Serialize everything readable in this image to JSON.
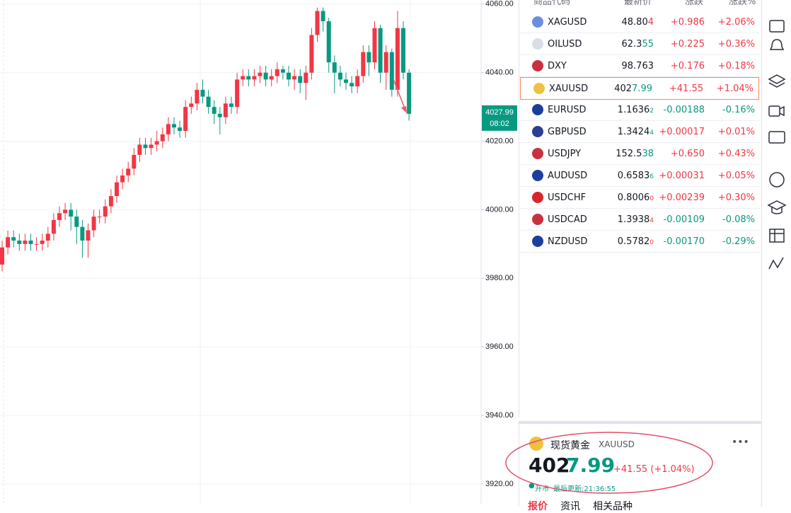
{
  "chart_data": {
    "type": "candlestick",
    "up_color": "#f23645",
    "down_color": "#089981",
    "ylim": [
      3914.2,
      4061.2
    ],
    "yticks": [
      {
        "value": 4060,
        "label": "4060.00"
      },
      {
        "value": 4040,
        "label": "4040.00"
      },
      {
        "value": 4020,
        "label": "4020.00"
      },
      {
        "value": 4000,
        "label": "4000.00"
      },
      {
        "value": 3980,
        "label": "3980.00"
      },
      {
        "value": 3960,
        "label": "3960.00"
      },
      {
        "value": 3940,
        "label": "3940.00"
      },
      {
        "value": 3920,
        "label": "3920.00"
      }
    ],
    "grid": true,
    "open": [
      3984,
      3989,
      3992,
      3991,
      3990,
      3991,
      3990,
      3990,
      3991,
      3993,
      3997,
      3999,
      4000,
      3998,
      3995,
      3991,
      3994,
      3998,
      3998,
      4001,
      4004,
      4008,
      4010,
      4012,
      4016,
      4019,
      4018,
      4019,
      4020,
      4022,
      4025,
      4024,
      4023,
      4030,
      4031,
      4035,
      4033,
      4030,
      4028,
      4027,
      4031,
      4030,
      4038,
      4039,
      4038,
      4039,
      4040,
      4038,
      4039,
      4041,
      4040,
      4038,
      4039,
      4037,
      4040,
      4051,
      4058,
      4055,
      4043,
      4040,
      4038,
      4037,
      4036,
      4039,
      4046,
      4043,
      4053,
      4040,
      4046,
      4035,
      4053,
      4040
    ],
    "close": [
      3989,
      3992,
      3991,
      3990,
      3991,
      3990,
      3990,
      3991,
      3993,
      3997,
      3999,
      4000,
      3998,
      3995,
      3991,
      3994,
      3998,
      3998,
      4001,
      4004,
      4008,
      4010,
      4012,
      4016,
      4019,
      4018,
      4019,
      4020,
      4022,
      4025,
      4024,
      4023,
      4030,
      4031,
      4035,
      4033,
      4030,
      4028,
      4027,
      4031,
      4030,
      4038,
      4039,
      4038,
      4039,
      4040,
      4038,
      4039,
      4041,
      4040,
      4038,
      4039,
      4037,
      4040,
      4051,
      4058,
      4055,
      4043,
      4040,
      4038,
      4037,
      4036,
      4039,
      4046,
      4043,
      4053,
      4040,
      4046,
      4035,
      4053,
      4040,
      4027.99
    ],
    "high": [
      3991,
      3994,
      3994,
      3993,
      3993,
      3993,
      3992,
      3993,
      3995,
      3999,
      4001,
      4002,
      4002,
      4000,
      3997,
      3996,
      4000,
      4000,
      4003,
      4006,
      4010,
      4012,
      4014,
      4018,
      4021,
      4021,
      4021,
      4023,
      4024,
      4027,
      4027,
      4026,
      4032,
      4033,
      4037,
      4038,
      4035,
      4032,
      4030,
      4033,
      4033,
      4040,
      4041,
      4041,
      4041,
      4042,
      4042,
      4041,
      4043,
      4042,
      4042,
      4041,
      4041,
      4042,
      4053,
      4059,
      4059,
      4056,
      4045,
      4042,
      4040,
      4039,
      4041,
      4048,
      4048,
      4055,
      4054,
      4048,
      4047,
      4058,
      4055,
      4041
    ],
    "low": [
      3982,
      3987,
      3989,
      3988,
      3988,
      3988,
      3988,
      3988,
      3989,
      3991,
      3995,
      3997,
      3994,
      3990,
      3986,
      3986,
      3992,
      3996,
      3996,
      3999,
      4002,
      4006,
      4008,
      4010,
      4014,
      4016,
      4016,
      4017,
      4018,
      4020,
      4022,
      4021,
      4021,
      4028,
      4029,
      4031,
      4028,
      4025,
      4022,
      4025,
      4028,
      4028,
      4036,
      4036,
      4036,
      4037,
      4036,
      4036,
      4037,
      4038,
      4036,
      4035,
      4034,
      4032,
      4038,
      4049,
      4052,
      4040,
      4034,
      4036,
      4035,
      4034,
      4034,
      4037,
      4039,
      4041,
      4037,
      4035,
      4033,
      4033,
      4038,
      4026
    ],
    "last_price": 4027.99,
    "last_time": "08:02"
  },
  "watchlist": {
    "headers": [
      "商品代码",
      "最新价",
      "涨跌",
      "涨跌%"
    ],
    "rows": [
      {
        "symbol": "XAGUSD",
        "price_main": "48.80",
        "price_tail": "4",
        "tail_color": "#f23645",
        "tail_small": false,
        "change": "+0.986",
        "change_pct": "+2.06%",
        "change_color": "#f23645",
        "icon_color": "#6b8fe0"
      },
      {
        "symbol": "OILUSD",
        "price_main": "62.3",
        "price_tail": "55",
        "tail_color": "#089981",
        "tail_small": false,
        "change": "+0.225",
        "change_pct": "+0.36%",
        "change_color": "#f23645",
        "icon_color": "#d8dde6"
      },
      {
        "symbol": "DXY",
        "price_main": "98.763",
        "change": "+0.176",
        "change_pct": "+0.18%",
        "change_color": "#f23645",
        "icon_color": "#c8313e"
      },
      {
        "symbol": "XAUUSD",
        "price_main": "402",
        "price_tail": "7.99",
        "tail_color": "#089981",
        "tail_small": false,
        "change": "+41.55",
        "change_pct": "+1.04%",
        "change_color": "#f23645",
        "icon_color": "#f0c040",
        "selected": true
      },
      {
        "symbol": "EURUSD",
        "price_main": "1.1636",
        "price_tail": "2",
        "tail_color": "#089981",
        "tail_small": true,
        "change": "-0.00188",
        "change_pct": "-0.16%",
        "change_color": "#089981",
        "icon_color": "#1d3f99"
      },
      {
        "symbol": "GBPUSD",
        "price_main": "1.3424",
        "price_tail": "4",
        "tail_color": "#089981",
        "tail_small": true,
        "change": "+0.00017",
        "change_pct": "+0.01%",
        "change_color": "#f23645",
        "icon_color": "#2a3f8f"
      },
      {
        "symbol": "USDJPY",
        "price_main": "152.5",
        "price_tail": "38",
        "tail_color": "#089981",
        "tail_small": false,
        "change": "+0.650",
        "change_pct": "+0.43%",
        "change_color": "#f23645",
        "icon_color": "#c8313e"
      },
      {
        "symbol": "AUDUSD",
        "price_main": "0.6583",
        "price_tail": "6",
        "tail_color": "#089981",
        "tail_small": true,
        "change": "+0.00031",
        "change_pct": "+0.05%",
        "change_color": "#f23645",
        "icon_color": "#1d3f99"
      },
      {
        "symbol": "USDCHF",
        "price_main": "0.8006",
        "price_tail": "0",
        "tail_color": "#f23645",
        "tail_small": true,
        "change": "+0.00239",
        "change_pct": "+0.30%",
        "change_color": "#f23645",
        "icon_color": "#d9252a"
      },
      {
        "symbol": "USDCAD",
        "price_main": "1.3938",
        "price_tail": "4",
        "tail_color": "#f23645",
        "tail_small": true,
        "change": "-0.00109",
        "change_pct": "-0.08%",
        "change_color": "#089981",
        "icon_color": "#c8313e"
      },
      {
        "symbol": "NZDUSD",
        "price_main": "0.5782",
        "price_tail": "0",
        "tail_color": "#f23645",
        "tail_small": true,
        "change": "-0.00170",
        "change_pct": "-0.29%",
        "change_color": "#089981",
        "icon_color": "#1d3f99"
      }
    ]
  },
  "quote": {
    "name": "现货黄金",
    "symbol": "XAUUSD",
    "price_main": "402",
    "price_tail": "7.99",
    "change": "+41.55 (+1.04%)",
    "status": "开市",
    "update_label": "最后更新:21:36:55",
    "tabs": [
      "报价",
      "资讯",
      "相关品种"
    ]
  }
}
